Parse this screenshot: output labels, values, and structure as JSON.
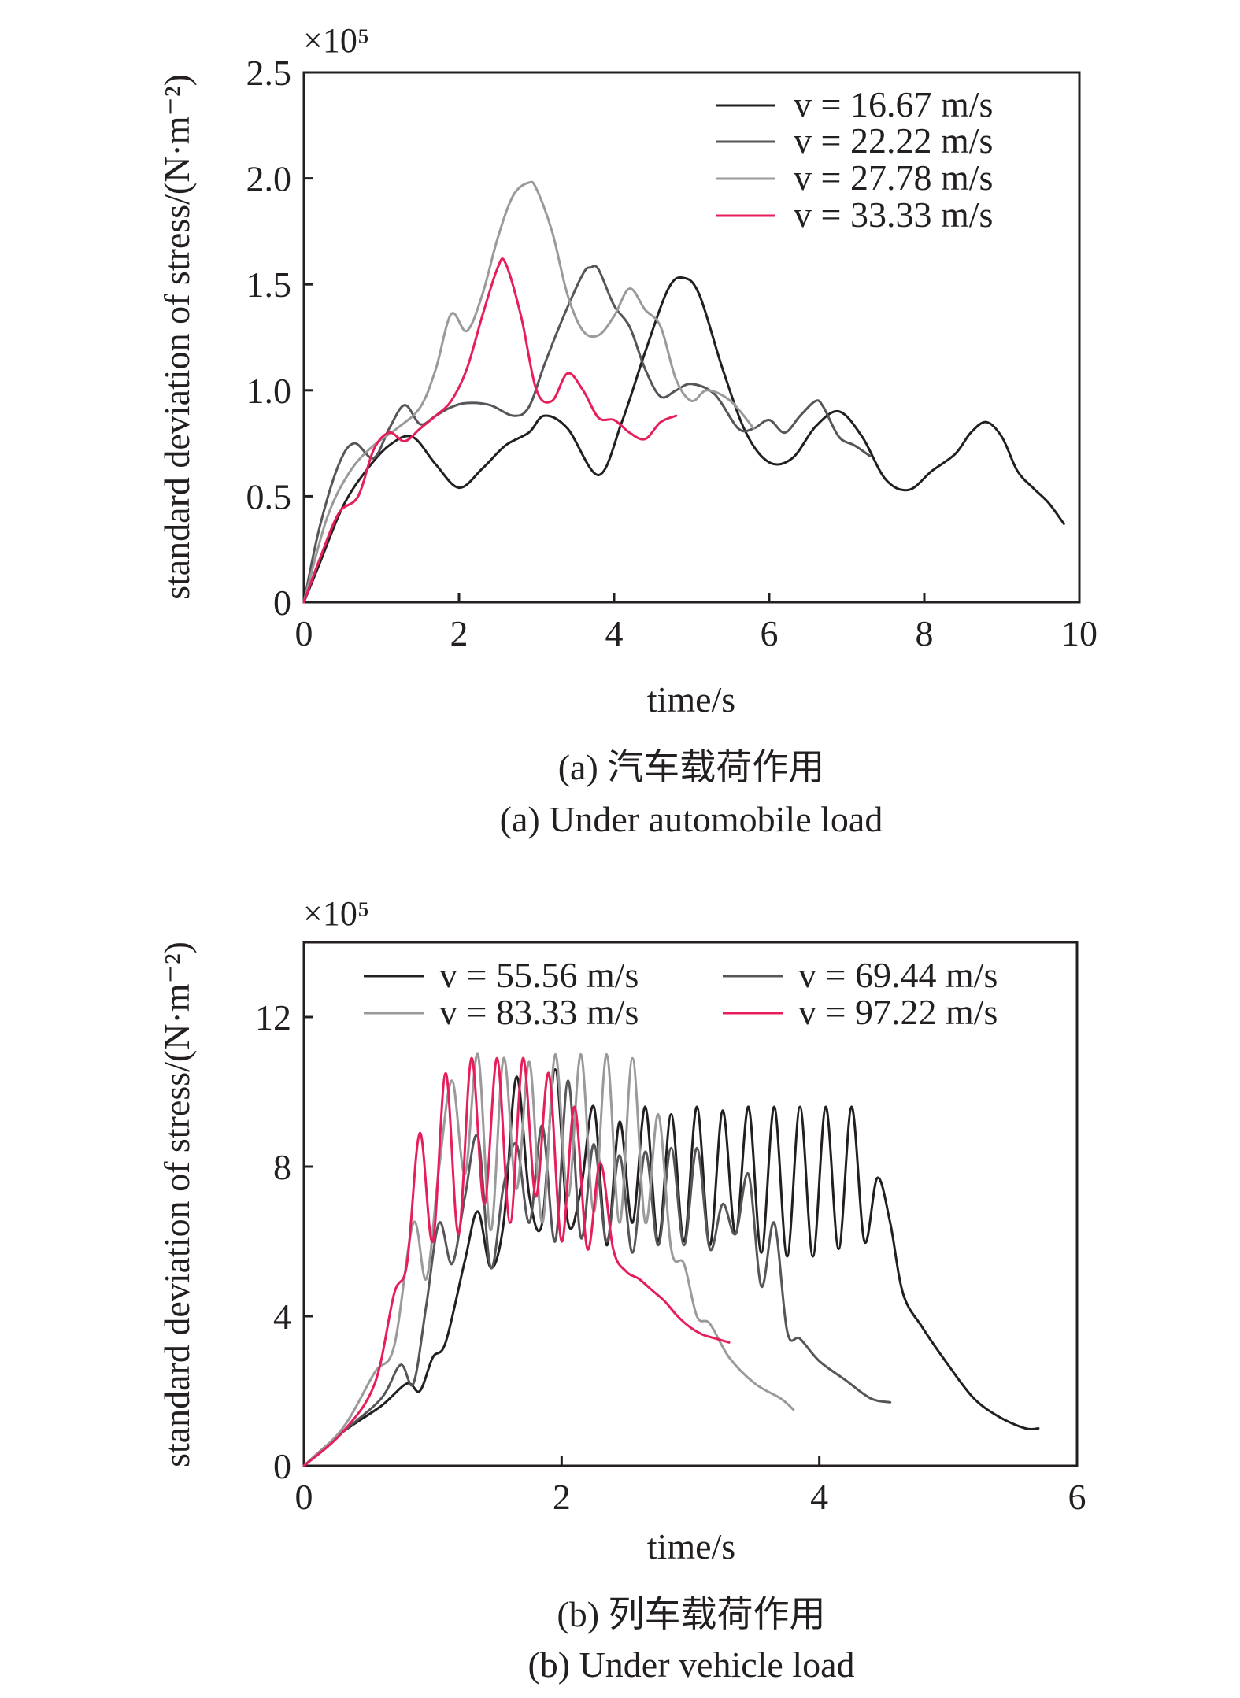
{
  "chart_data": [
    {
      "type": "line",
      "ylabel": "standard deviation of stress/(N·m⁻²)",
      "xlabel": "time/s",
      "y_multiplier": "×10⁵",
      "caption_cn": "(a) 汽车载荷作用",
      "caption_en": "(a) Under automobile load",
      "xlim": [
        0,
        10
      ],
      "ylim": [
        0,
        2.5
      ],
      "xticks": [
        "0",
        "2",
        "4",
        "6",
        "8",
        "10"
      ],
      "yticks": [
        "0",
        "0.5",
        "1.0",
        "1.5",
        "2.0",
        "2.5"
      ],
      "legend_position": "top-right",
      "series": [
        {
          "name": "v = 16.67 m/s",
          "color": "#231f20",
          "x": [
            0,
            0.2,
            0.5,
            0.8,
            1.1,
            1.4,
            1.7,
            2.0,
            2.3,
            2.6,
            2.9,
            3.1,
            3.4,
            3.8,
            4.1,
            4.4,
            4.7,
            4.9,
            5.1,
            5.4,
            5.7,
            6.0,
            6.3,
            6.6,
            6.9,
            7.2,
            7.5,
            7.8,
            8.1,
            8.4,
            8.6,
            8.8,
            9.0,
            9.2,
            9.4,
            9.6,
            9.8
          ],
          "y": [
            0,
            0.18,
            0.45,
            0.62,
            0.74,
            0.78,
            0.65,
            0.54,
            0.63,
            0.74,
            0.8,
            0.88,
            0.82,
            0.6,
            0.85,
            1.18,
            1.48,
            1.53,
            1.45,
            1.1,
            0.8,
            0.66,
            0.68,
            0.83,
            0.9,
            0.78,
            0.58,
            0.53,
            0.62,
            0.7,
            0.8,
            0.85,
            0.78,
            0.62,
            0.54,
            0.47,
            0.37
          ]
        },
        {
          "name": "v = 22.22 m/s",
          "color": "#55555a",
          "x": [
            0,
            0.2,
            0.45,
            0.65,
            0.9,
            1.1,
            1.3,
            1.5,
            1.7,
            1.9,
            2.1,
            2.4,
            2.7,
            2.9,
            3.1,
            3.35,
            3.6,
            3.7,
            3.8,
            4.0,
            4.2,
            4.4,
            4.6,
            4.8,
            5.0,
            5.3,
            5.6,
            5.8,
            6.0,
            6.2,
            6.4,
            6.6,
            6.7,
            6.9,
            7.1,
            7.3
          ],
          "y": [
            0,
            0.35,
            0.65,
            0.75,
            0.68,
            0.82,
            0.93,
            0.84,
            0.88,
            0.92,
            0.94,
            0.93,
            0.88,
            0.92,
            1.12,
            1.35,
            1.55,
            1.58,
            1.57,
            1.4,
            1.3,
            1.1,
            0.97,
            1.0,
            1.03,
            0.98,
            0.82,
            0.82,
            0.86,
            0.8,
            0.88,
            0.95,
            0.92,
            0.78,
            0.74,
            0.69
          ]
        },
        {
          "name": "v = 27.78 m/s",
          "color": "#9a9a9a",
          "x": [
            0,
            0.3,
            0.6,
            0.9,
            1.2,
            1.5,
            1.7,
            1.9,
            2.1,
            2.3,
            2.5,
            2.7,
            2.9,
            3.0,
            3.2,
            3.4,
            3.6,
            3.8,
            4.0,
            4.2,
            4.4,
            4.6,
            4.8,
            5.0,
            5.2,
            5.5,
            5.8
          ],
          "y": [
            0,
            0.4,
            0.62,
            0.74,
            0.82,
            0.92,
            1.1,
            1.36,
            1.28,
            1.45,
            1.72,
            1.92,
            1.98,
            1.95,
            1.75,
            1.45,
            1.28,
            1.26,
            1.35,
            1.48,
            1.38,
            1.3,
            1.05,
            0.95,
            1.0,
            0.95,
            0.82
          ]
        },
        {
          "name": "v = 33.33 m/s",
          "color": "#e61f5a",
          "x": [
            0,
            0.2,
            0.45,
            0.7,
            0.9,
            1.1,
            1.3,
            1.5,
            1.7,
            1.9,
            2.1,
            2.3,
            2.5,
            2.6,
            2.8,
            3.0,
            3.2,
            3.4,
            3.6,
            3.8,
            4.0,
            4.2,
            4.4,
            4.6,
            4.8
          ],
          "y": [
            0,
            0.2,
            0.42,
            0.5,
            0.72,
            0.8,
            0.76,
            0.82,
            0.88,
            0.95,
            1.1,
            1.35,
            1.58,
            1.6,
            1.35,
            1.0,
            0.95,
            1.08,
            1.0,
            0.87,
            0.86,
            0.8,
            0.77,
            0.85,
            0.88
          ]
        }
      ]
    },
    {
      "type": "line",
      "ylabel": "standard deviation of stress/(N·m⁻²)",
      "xlabel": "time/s",
      "y_multiplier": "×10⁵",
      "caption_cn": "(b) 列车载荷作用",
      "caption_en": "(b) Under vehicle load",
      "xlim": [
        0,
        6
      ],
      "ylim": [
        0,
        14
      ],
      "xticks": [
        "0",
        "2",
        "4",
        "6"
      ],
      "yticks": [
        "0",
        "4",
        "8",
        "12"
      ],
      "legend_position": "top",
      "series": [
        {
          "name": "v = 55.56 m/s",
          "color": "#231f20",
          "x": [
            0,
            0.3,
            0.6,
            0.8,
            0.9,
            1.0,
            1.1,
            1.25,
            1.35,
            1.45,
            1.55,
            1.65,
            1.75,
            1.85,
            1.95,
            2.05,
            2.15,
            2.25,
            2.35,
            2.45,
            2.55,
            2.65,
            2.75,
            2.85,
            2.95,
            3.05,
            3.15,
            3.25,
            3.35,
            3.45,
            3.55,
            3.65,
            3.75,
            3.85,
            3.95,
            4.05,
            4.15,
            4.25,
            4.35,
            4.45,
            4.55,
            4.65,
            4.8,
            5.0,
            5.2,
            5.4,
            5.6,
            5.7
          ],
          "y": [
            0,
            0.9,
            1.6,
            2.2,
            2.0,
            2.9,
            3.3,
            5.5,
            6.8,
            5.3,
            6.5,
            10.4,
            7.2,
            6.5,
            10.6,
            6.5,
            7.4,
            9.6,
            5.9,
            9.2,
            6.5,
            9.6,
            6.0,
            9.4,
            6.0,
            9.6,
            5.9,
            9.5,
            6.2,
            9.6,
            5.7,
            9.6,
            5.6,
            9.6,
            5.6,
            9.6,
            5.8,
            9.6,
            6.0,
            7.7,
            6.5,
            4.6,
            3.7,
            2.7,
            1.8,
            1.3,
            1.0,
            1.0
          ]
        },
        {
          "name": "v = 69.44 m/s",
          "color": "#55555a",
          "x": [
            0,
            0.3,
            0.6,
            0.75,
            0.85,
            0.95,
            1.05,
            1.15,
            1.25,
            1.35,
            1.45,
            1.55,
            1.65,
            1.75,
            1.85,
            1.95,
            2.05,
            2.15,
            2.25,
            2.35,
            2.45,
            2.55,
            2.65,
            2.75,
            2.85,
            2.95,
            3.05,
            3.15,
            3.25,
            3.35,
            3.45,
            3.55,
            3.65,
            3.75,
            3.85,
            4.0,
            4.2,
            4.4,
            4.55
          ],
          "y": [
            0,
            0.9,
            1.8,
            2.7,
            2.2,
            4.3,
            6.5,
            5.4,
            7.2,
            8.8,
            5.3,
            7.5,
            8.6,
            6.5,
            9.1,
            6.0,
            10.3,
            6.1,
            8.6,
            6.0,
            8.3,
            5.7,
            8.4,
            5.9,
            8.5,
            5.9,
            8.5,
            5.8,
            7.0,
            6.2,
            7.8,
            4.8,
            6.5,
            3.6,
            3.4,
            2.8,
            2.3,
            1.8,
            1.7
          ]
        },
        {
          "name": "v = 83.33 m/s",
          "color": "#9a9a9a",
          "x": [
            0,
            0.3,
            0.55,
            0.7,
            0.85,
            0.95,
            1.05,
            1.15,
            1.25,
            1.35,
            1.45,
            1.55,
            1.65,
            1.75,
            1.85,
            1.95,
            2.05,
            2.15,
            2.25,
            2.35,
            2.45,
            2.55,
            2.65,
            2.75,
            2.85,
            2.95,
            3.05,
            3.15,
            3.3,
            3.5,
            3.7,
            3.8
          ],
          "y": [
            0,
            1.0,
            2.5,
            3.2,
            6.5,
            5.0,
            8.0,
            10.3,
            7.8,
            11.0,
            6.3,
            10.9,
            7.4,
            10.8,
            6.5,
            11.0,
            7.2,
            11.0,
            6.8,
            11.0,
            6.5,
            10.9,
            6.5,
            9.4,
            5.8,
            5.4,
            4.0,
            3.8,
            2.9,
            2.2,
            1.8,
            1.5
          ]
        },
        {
          "name": "v = 97.22 m/s",
          "color": "#e61f5a",
          "x": [
            0,
            0.3,
            0.55,
            0.7,
            0.8,
            0.9,
            1.0,
            1.1,
            1.2,
            1.3,
            1.4,
            1.5,
            1.6,
            1.7,
            1.8,
            1.9,
            2.0,
            2.1,
            2.2,
            2.3,
            2.4,
            2.5,
            2.6,
            2.7,
            2.8,
            2.9,
            3.0,
            3.1,
            3.2,
            3.3
          ],
          "y": [
            0,
            0.9,
            2.2,
            4.6,
            5.4,
            8.9,
            6.0,
            10.5,
            6.2,
            10.9,
            7.0,
            10.9,
            6.5,
            10.9,
            7.2,
            10.5,
            6.0,
            9.6,
            5.8,
            8.1,
            5.8,
            5.2,
            5.0,
            4.7,
            4.4,
            4.0,
            3.7,
            3.5,
            3.4,
            3.3
          ]
        }
      ]
    }
  ]
}
